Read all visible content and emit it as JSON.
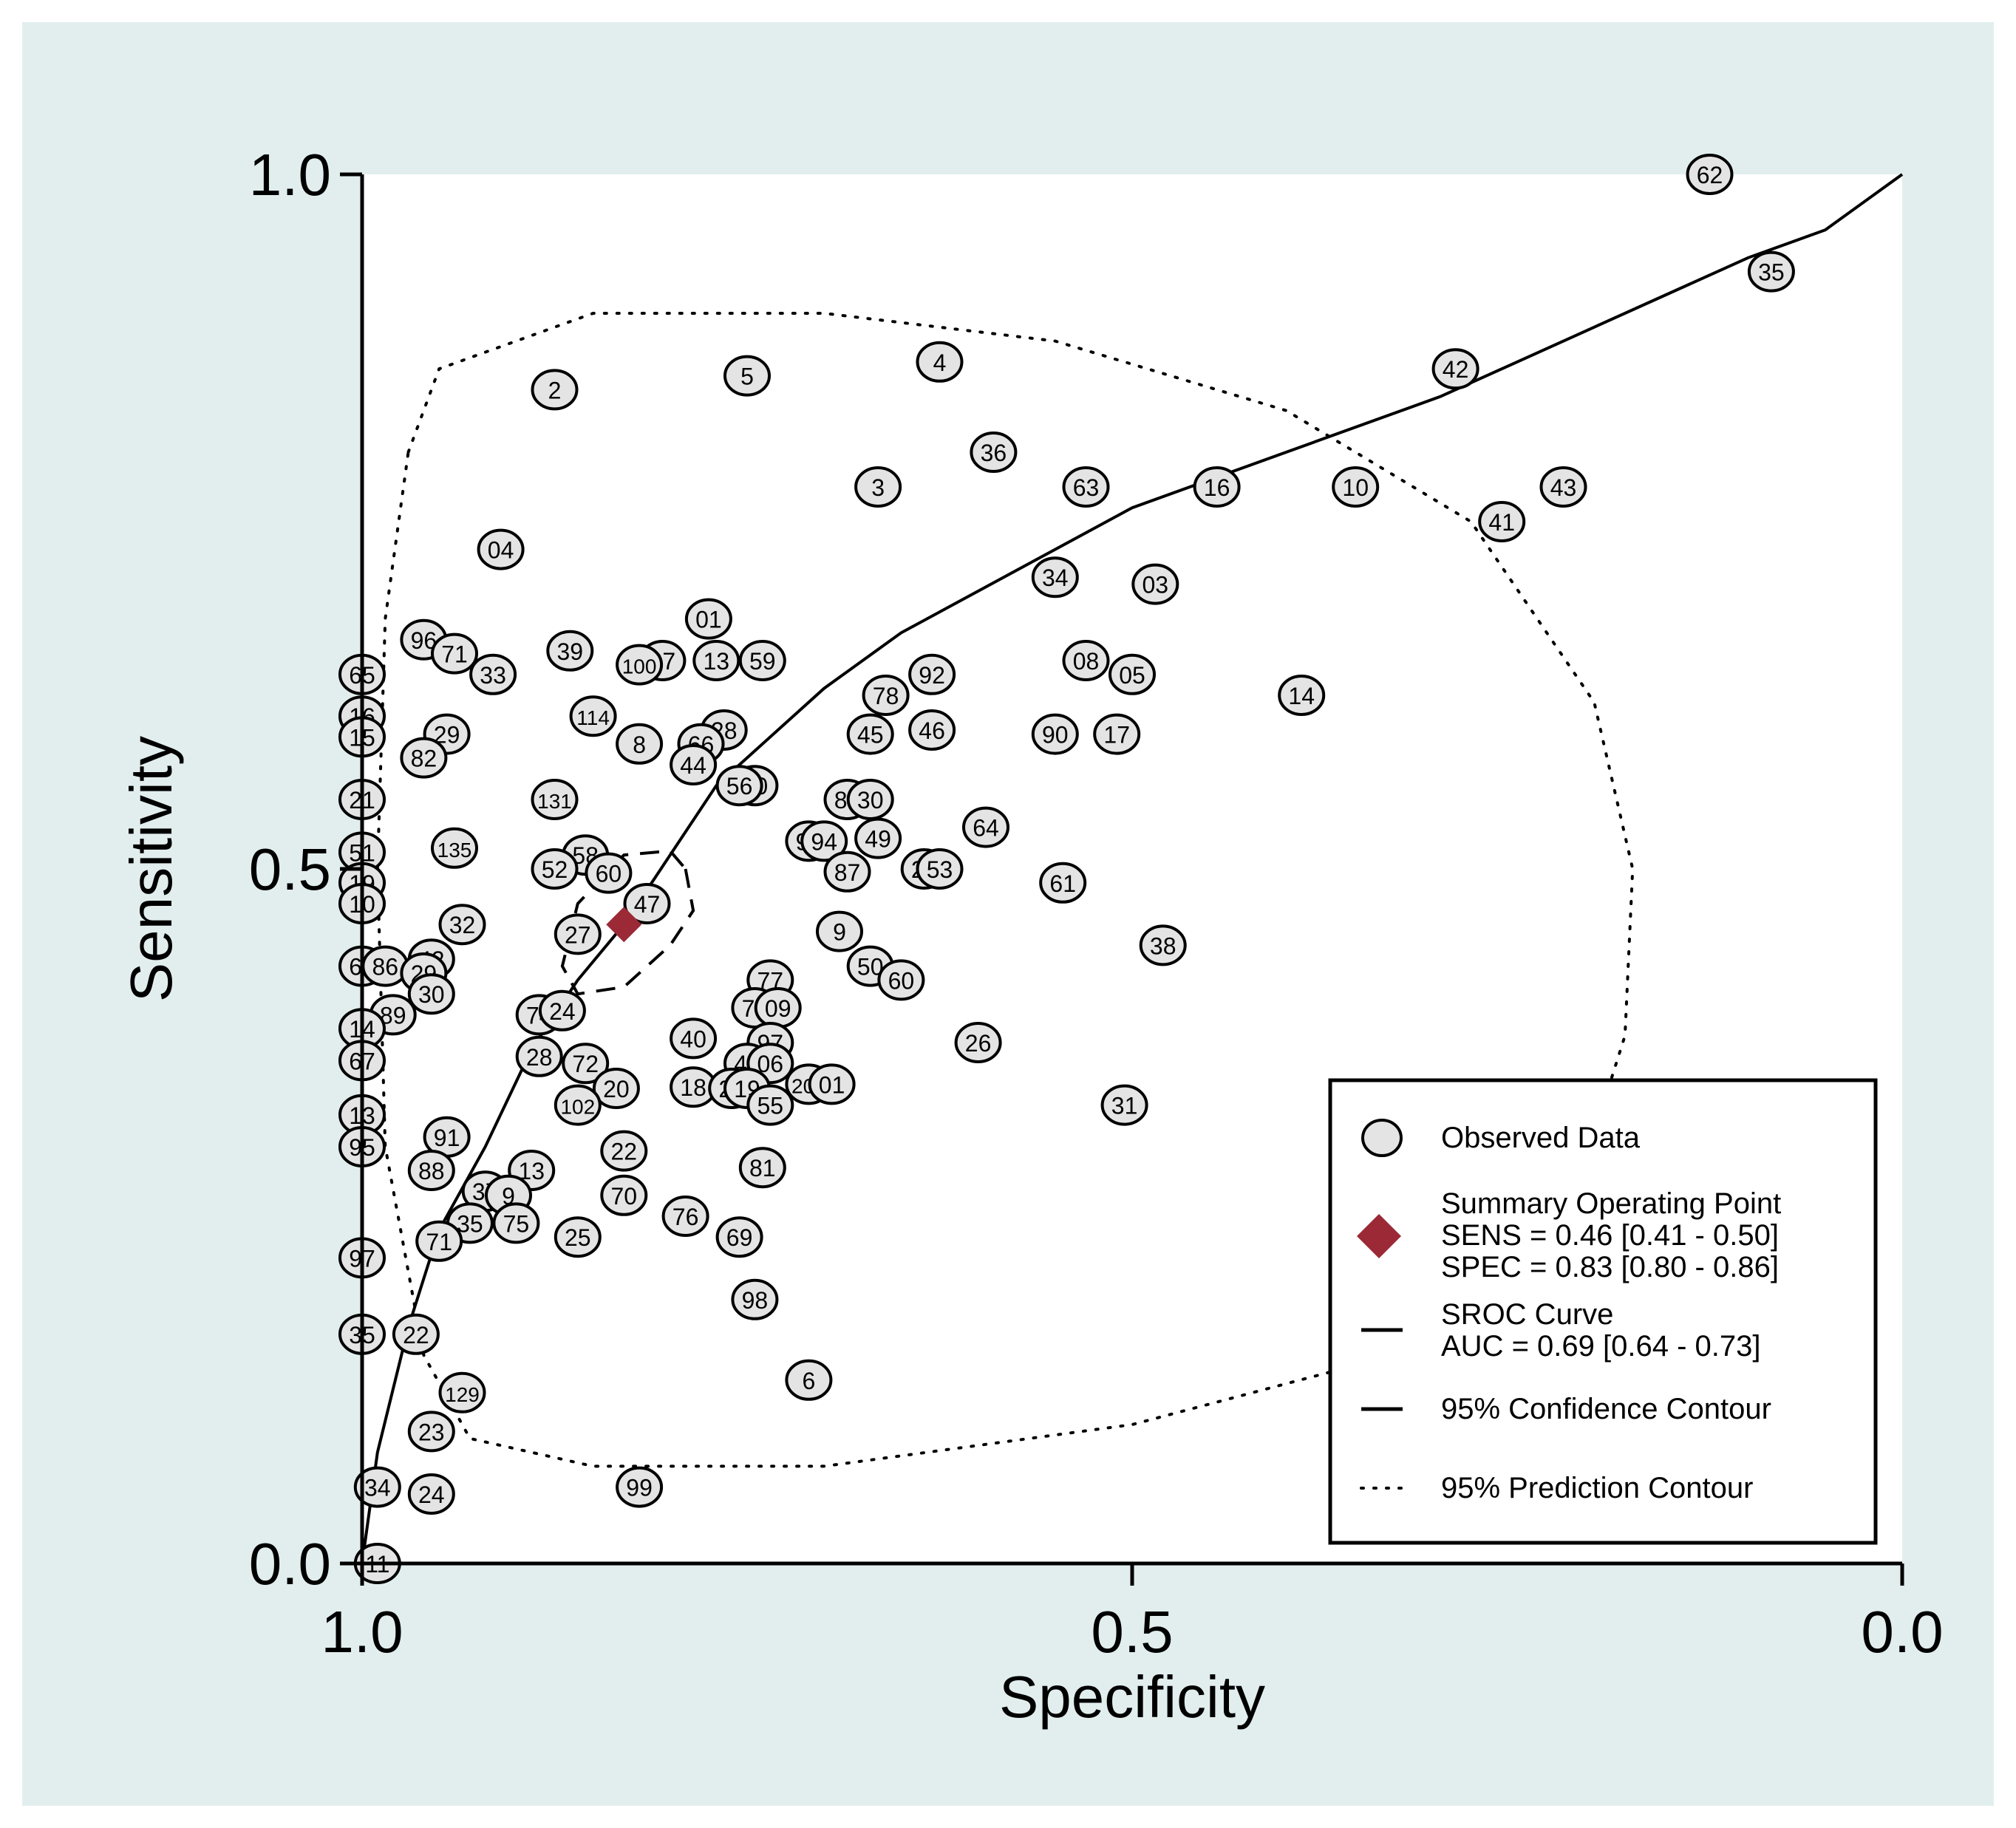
{
  "chart_data": {
    "type": "scatter",
    "xlabel": "Specificity",
    "ylabel": "Sensitivity",
    "xlim": [
      1.0,
      0.0
    ],
    "ylim": [
      0.0,
      1.0
    ],
    "x_ticks": [
      "1.0",
      "0.5",
      "0.0"
    ],
    "y_ticks": [
      "0.0",
      "0.5",
      "1.0"
    ],
    "x_reversed": true,
    "grid": false,
    "legend_position": "bottom-right",
    "colors": {
      "outer_background": "#e2eeee",
      "plot_background": "#ffffff",
      "marker_fill": "#e4e4e4",
      "summary_point": "#9b2a36",
      "line": "#000000"
    },
    "legend": [
      {
        "label": "Observed Data",
        "symbol": "circle"
      },
      {
        "label": "Summary Operating Point",
        "symbol": "diamond",
        "lines": [
          "SENS = 0.46 [0.41 - 0.50]",
          "SPEC = 0.83 [0.80 - 0.86]"
        ]
      },
      {
        "label": "SROC Curve",
        "symbol": "solid-line",
        "lines": [
          "AUC = 0.69 [0.64 - 0.73]"
        ]
      },
      {
        "label": "95% Confidence Contour",
        "symbol": "dashed-line"
      },
      {
        "label": "95% Prediction Contour",
        "symbol": "dotted-line"
      }
    ],
    "summary_point": {
      "specificity": 0.83,
      "sensitivity": 0.46
    },
    "sroc_curve": [
      {
        "specificity": 1.0,
        "sensitivity": 0.0
      },
      {
        "specificity": 0.99,
        "sensitivity": 0.08
      },
      {
        "specificity": 0.97,
        "sensitivity": 0.17
      },
      {
        "specificity": 0.95,
        "sensitivity": 0.24
      },
      {
        "specificity": 0.92,
        "sensitivity": 0.3
      },
      {
        "specificity": 0.89,
        "sensitivity": 0.37
      },
      {
        "specificity": 0.86,
        "sensitivity": 0.42
      },
      {
        "specificity": 0.83,
        "sensitivity": 0.46
      },
      {
        "specificity": 0.8,
        "sensitivity": 0.51
      },
      {
        "specificity": 0.77,
        "sensitivity": 0.56
      },
      {
        "specificity": 0.74,
        "sensitivity": 0.59
      },
      {
        "specificity": 0.7,
        "sensitivity": 0.63
      },
      {
        "specificity": 0.65,
        "sensitivity": 0.67
      },
      {
        "specificity": 0.6,
        "sensitivity": 0.7
      },
      {
        "specificity": 0.55,
        "sensitivity": 0.73
      },
      {
        "specificity": 0.5,
        "sensitivity": 0.76
      },
      {
        "specificity": 0.4,
        "sensitivity": 0.8
      },
      {
        "specificity": 0.3,
        "sensitivity": 0.84
      },
      {
        "specificity": 0.2,
        "sensitivity": 0.89
      },
      {
        "specificity": 0.1,
        "sensitivity": 0.94
      },
      {
        "specificity": 0.05,
        "sensitivity": 0.96
      },
      {
        "specificity": 0.0,
        "sensitivity": 1.0
      }
    ],
    "confidence_contour": [
      {
        "specificity": 0.79,
        "sensitivity": 0.5
      },
      {
        "specificity": 0.785,
        "sensitivity": 0.47
      },
      {
        "specificity": 0.8,
        "sensitivity": 0.445
      },
      {
        "specificity": 0.83,
        "sensitivity": 0.415
      },
      {
        "specificity": 0.86,
        "sensitivity": 0.41
      },
      {
        "specificity": 0.87,
        "sensitivity": 0.43
      },
      {
        "specificity": 0.86,
        "sensitivity": 0.475
      },
      {
        "specificity": 0.83,
        "sensitivity": 0.51
      },
      {
        "specificity": 0.8,
        "sensitivity": 0.513
      },
      {
        "specificity": 0.79,
        "sensitivity": 0.5
      }
    ],
    "prediction_contour": [
      {
        "specificity": 0.97,
        "sensitivity": 0.8
      },
      {
        "specificity": 0.95,
        "sensitivity": 0.86
      },
      {
        "specificity": 0.85,
        "sensitivity": 0.9
      },
      {
        "specificity": 0.7,
        "sensitivity": 0.9
      },
      {
        "specificity": 0.55,
        "sensitivity": 0.88
      },
      {
        "specificity": 0.4,
        "sensitivity": 0.83
      },
      {
        "specificity": 0.28,
        "sensitivity": 0.75
      },
      {
        "specificity": 0.2,
        "sensitivity": 0.62
      },
      {
        "specificity": 0.175,
        "sensitivity": 0.5
      },
      {
        "specificity": 0.18,
        "sensitivity": 0.38
      },
      {
        "specificity": 0.22,
        "sensitivity": 0.24
      },
      {
        "specificity": 0.33,
        "sensitivity": 0.15
      },
      {
        "specificity": 0.5,
        "sensitivity": 0.1
      },
      {
        "specificity": 0.7,
        "sensitivity": 0.07
      },
      {
        "specificity": 0.85,
        "sensitivity": 0.07
      },
      {
        "specificity": 0.93,
        "sensitivity": 0.09
      },
      {
        "specificity": 0.96,
        "sensitivity": 0.15
      },
      {
        "specificity": 0.985,
        "sensitivity": 0.3
      },
      {
        "specificity": 0.99,
        "sensitivity": 0.5
      },
      {
        "specificity": 0.985,
        "sensitivity": 0.68
      },
      {
        "specificity": 0.97,
        "sensitivity": 0.8
      }
    ],
    "observed_points": [
      {
        "label": "62",
        "specificity": 0.125,
        "sensitivity": 1.0
      },
      {
        "label": "35",
        "specificity": 0.085,
        "sensitivity": 0.93
      },
      {
        "label": "42",
        "specificity": 0.29,
        "sensitivity": 0.86
      },
      {
        "label": "4",
        "specificity": 0.625,
        "sensitivity": 0.865
      },
      {
        "label": "5",
        "specificity": 0.75,
        "sensitivity": 0.855
      },
      {
        "label": "2",
        "specificity": 0.875,
        "sensitivity": 0.845
      },
      {
        "label": "36",
        "specificity": 0.59,
        "sensitivity": 0.8
      },
      {
        "label": "3",
        "specificity": 0.665,
        "sensitivity": 0.775
      },
      {
        "label": "63",
        "specificity": 0.53,
        "sensitivity": 0.775
      },
      {
        "label": "16",
        "specificity": 0.445,
        "sensitivity": 0.775
      },
      {
        "label": "10",
        "specificity": 0.355,
        "sensitivity": 0.775
      },
      {
        "label": "43",
        "specificity": 0.22,
        "sensitivity": 0.775
      },
      {
        "label": "41",
        "specificity": 0.26,
        "sensitivity": 0.75
      },
      {
        "label": "04",
        "specificity": 0.91,
        "sensitivity": 0.73
      },
      {
        "label": "34",
        "specificity": 0.55,
        "sensitivity": 0.71
      },
      {
        "label": "03",
        "specificity": 0.485,
        "sensitivity": 0.705
      },
      {
        "label": "01",
        "specificity": 0.775,
        "sensitivity": 0.68
      },
      {
        "label": "96",
        "specificity": 0.96,
        "sensitivity": 0.665
      },
      {
        "label": "71",
        "specificity": 0.94,
        "sensitivity": 0.655
      },
      {
        "label": "39",
        "specificity": 0.865,
        "sensitivity": 0.657
      },
      {
        "label": "07",
        "specificity": 0.805,
        "sensitivity": 0.65
      },
      {
        "label": "100",
        "specificity": 0.82,
        "sensitivity": 0.647
      },
      {
        "label": "13",
        "specificity": 0.77,
        "sensitivity": 0.65
      },
      {
        "label": "59",
        "specificity": 0.74,
        "sensitivity": 0.65
      },
      {
        "label": "08",
        "specificity": 0.53,
        "sensitivity": 0.65
      },
      {
        "label": "33",
        "specificity": 0.915,
        "sensitivity": 0.64
      },
      {
        "label": "92",
        "specificity": 0.63,
        "sensitivity": 0.64
      },
      {
        "label": "05",
        "specificity": 0.5,
        "sensitivity": 0.64
      },
      {
        "label": "65",
        "specificity": 1.0,
        "sensitivity": 0.64
      },
      {
        "label": "78",
        "specificity": 0.66,
        "sensitivity": 0.625
      },
      {
        "label": "14",
        "specificity": 0.39,
        "sensitivity": 0.625
      },
      {
        "label": "114",
        "specificity": 0.85,
        "sensitivity": 0.61
      },
      {
        "label": "16",
        "specificity": 1.0,
        "sensitivity": 0.61
      },
      {
        "label": "28",
        "specificity": 0.765,
        "sensitivity": 0.6
      },
      {
        "label": "45",
        "specificity": 0.67,
        "sensitivity": 0.597
      },
      {
        "label": "46",
        "specificity": 0.63,
        "sensitivity": 0.6
      },
      {
        "label": "90",
        "specificity": 0.55,
        "sensitivity": 0.597
      },
      {
        "label": "17",
        "specificity": 0.51,
        "sensitivity": 0.597
      },
      {
        "label": "29",
        "specificity": 0.945,
        "sensitivity": 0.597
      },
      {
        "label": "8",
        "specificity": 0.82,
        "sensitivity": 0.59
      },
      {
        "label": "66",
        "specificity": 0.78,
        "sensitivity": 0.59
      },
      {
        "label": "15",
        "specificity": 1.0,
        "sensitivity": 0.595
      },
      {
        "label": "82",
        "specificity": 0.96,
        "sensitivity": 0.58
      },
      {
        "label": "44",
        "specificity": 0.785,
        "sensitivity": 0.575
      },
      {
        "label": "80",
        "specificity": 0.745,
        "sensitivity": 0.56
      },
      {
        "label": "56",
        "specificity": 0.755,
        "sensitivity": 0.56
      },
      {
        "label": "21",
        "specificity": 1.0,
        "sensitivity": 0.55
      },
      {
        "label": "131",
        "specificity": 0.875,
        "sensitivity": 0.55
      },
      {
        "label": "83",
        "specificity": 0.685,
        "sensitivity": 0.55
      },
      {
        "label": "30",
        "specificity": 0.67,
        "sensitivity": 0.55
      },
      {
        "label": "64",
        "specificity": 0.595,
        "sensitivity": 0.53
      },
      {
        "label": "93",
        "specificity": 0.71,
        "sensitivity": 0.52
      },
      {
        "label": "94",
        "specificity": 0.7,
        "sensitivity": 0.52
      },
      {
        "label": "49",
        "specificity": 0.665,
        "sensitivity": 0.522
      },
      {
        "label": "135",
        "specificity": 0.94,
        "sensitivity": 0.515
      },
      {
        "label": "51",
        "specificity": 1.0,
        "sensitivity": 0.512
      },
      {
        "label": "58",
        "specificity": 0.855,
        "sensitivity": 0.51
      },
      {
        "label": "52",
        "specificity": 0.875,
        "sensitivity": 0.5
      },
      {
        "label": "60",
        "specificity": 0.84,
        "sensitivity": 0.497
      },
      {
        "label": "87",
        "specificity": 0.685,
        "sensitivity": 0.498
      },
      {
        "label": "26",
        "specificity": 0.635,
        "sensitivity": 0.5
      },
      {
        "label": "53",
        "specificity": 0.625,
        "sensitivity": 0.5
      },
      {
        "label": "61",
        "specificity": 0.545,
        "sensitivity": 0.49
      },
      {
        "label": "19",
        "specificity": 1.0,
        "sensitivity": 0.49
      },
      {
        "label": "10",
        "specificity": 1.0,
        "sensitivity": 0.475
      },
      {
        "label": "47",
        "specificity": 0.815,
        "sensitivity": 0.475
      },
      {
        "label": "32",
        "specificity": 0.935,
        "sensitivity": 0.46
      },
      {
        "label": "27",
        "specificity": 0.86,
        "sensitivity": 0.453
      },
      {
        "label": "9",
        "specificity": 0.69,
        "sensitivity": 0.455
      },
      {
        "label": "38",
        "specificity": 0.48,
        "sensitivity": 0.445
      },
      {
        "label": "60",
        "specificity": 1.0,
        "sensitivity": 0.43
      },
      {
        "label": "86",
        "specificity": 0.985,
        "sensitivity": 0.43
      },
      {
        "label": "42",
        "specificity": 0.955,
        "sensitivity": 0.435
      },
      {
        "label": "29",
        "specificity": 0.96,
        "sensitivity": 0.425
      },
      {
        "label": "50",
        "specificity": 0.67,
        "sensitivity": 0.43
      },
      {
        "label": "60",
        "specificity": 0.65,
        "sensitivity": 0.42
      },
      {
        "label": "77",
        "specificity": 0.735,
        "sensitivity": 0.42
      },
      {
        "label": "30",
        "specificity": 0.955,
        "sensitivity": 0.41
      },
      {
        "label": "79",
        "specificity": 0.745,
        "sensitivity": 0.4
      },
      {
        "label": "09",
        "specificity": 0.73,
        "sensitivity": 0.4
      },
      {
        "label": "74",
        "specificity": 0.885,
        "sensitivity": 0.395
      },
      {
        "label": "24",
        "specificity": 0.87,
        "sensitivity": 0.398
      },
      {
        "label": "89",
        "specificity": 0.98,
        "sensitivity": 0.395
      },
      {
        "label": "14",
        "specificity": 1.0,
        "sensitivity": 0.385
      },
      {
        "label": "40",
        "specificity": 0.785,
        "sensitivity": 0.378
      },
      {
        "label": "97",
        "specificity": 0.735,
        "sensitivity": 0.375
      },
      {
        "label": "26",
        "specificity": 0.6,
        "sensitivity": 0.375
      },
      {
        "label": "67",
        "specificity": 1.0,
        "sensitivity": 0.362
      },
      {
        "label": "28",
        "specificity": 0.885,
        "sensitivity": 0.365
      },
      {
        "label": "72",
        "specificity": 0.855,
        "sensitivity": 0.36
      },
      {
        "label": "48",
        "specificity": 0.75,
        "sensitivity": 0.36
      },
      {
        "label": "06",
        "specificity": 0.735,
        "sensitivity": 0.36
      },
      {
        "label": "20",
        "specificity": 0.835,
        "sensitivity": 0.342
      },
      {
        "label": "18",
        "specificity": 0.785,
        "sensitivity": 0.343
      },
      {
        "label": "21",
        "specificity": 0.76,
        "sensitivity": 0.342
      },
      {
        "label": "19",
        "specificity": 0.75,
        "sensitivity": 0.342
      },
      {
        "label": "201",
        "specificity": 0.71,
        "sensitivity": 0.345
      },
      {
        "label": "01",
        "specificity": 0.695,
        "sensitivity": 0.345
      },
      {
        "label": "102",
        "specificity": 0.86,
        "sensitivity": 0.33
      },
      {
        "label": "55",
        "specificity": 0.735,
        "sensitivity": 0.33
      },
      {
        "label": "31",
        "specificity": 0.505,
        "sensitivity": 0.33
      },
      {
        "label": "13",
        "specificity": 1.0,
        "sensitivity": 0.323
      },
      {
        "label": "91",
        "specificity": 0.945,
        "sensitivity": 0.307
      },
      {
        "label": "95",
        "specificity": 1.0,
        "sensitivity": 0.3
      },
      {
        "label": "22",
        "specificity": 0.83,
        "sensitivity": 0.297
      },
      {
        "label": "13",
        "specificity": 0.89,
        "sensitivity": 0.283
      },
      {
        "label": "81",
        "specificity": 0.74,
        "sensitivity": 0.285
      },
      {
        "label": "88",
        "specificity": 0.955,
        "sensitivity": 0.283
      },
      {
        "label": "37",
        "specificity": 0.92,
        "sensitivity": 0.268
      },
      {
        "label": "9",
        "specificity": 0.905,
        "sensitivity": 0.265
      },
      {
        "label": "70",
        "specificity": 0.83,
        "sensitivity": 0.265
      },
      {
        "label": "76",
        "specificity": 0.79,
        "sensitivity": 0.25
      },
      {
        "label": "35",
        "specificity": 0.93,
        "sensitivity": 0.245
      },
      {
        "label": "75",
        "specificity": 0.9,
        "sensitivity": 0.245
      },
      {
        "label": "69",
        "specificity": 0.755,
        "sensitivity": 0.235
      },
      {
        "label": "25",
        "specificity": 0.86,
        "sensitivity": 0.235
      },
      {
        "label": "71",
        "specificity": 0.95,
        "sensitivity": 0.232
      },
      {
        "label": "97",
        "specificity": 1.0,
        "sensitivity": 0.22
      },
      {
        "label": "98",
        "specificity": 0.745,
        "sensitivity": 0.19
      },
      {
        "label": "22",
        "specificity": 0.965,
        "sensitivity": 0.165
      },
      {
        "label": "35",
        "specificity": 1.0,
        "sensitivity": 0.165
      },
      {
        "label": "6",
        "specificity": 0.71,
        "sensitivity": 0.132
      },
      {
        "label": "129",
        "specificity": 0.935,
        "sensitivity": 0.123
      },
      {
        "label": "23",
        "specificity": 0.955,
        "sensitivity": 0.095
      },
      {
        "label": "34",
        "specificity": 0.99,
        "sensitivity": 0.055
      },
      {
        "label": "99",
        "specificity": 0.82,
        "sensitivity": 0.055
      },
      {
        "label": "24",
        "specificity": 0.955,
        "sensitivity": 0.05
      },
      {
        "label": "11",
        "specificity": 0.99,
        "sensitivity": 0.0
      }
    ]
  }
}
